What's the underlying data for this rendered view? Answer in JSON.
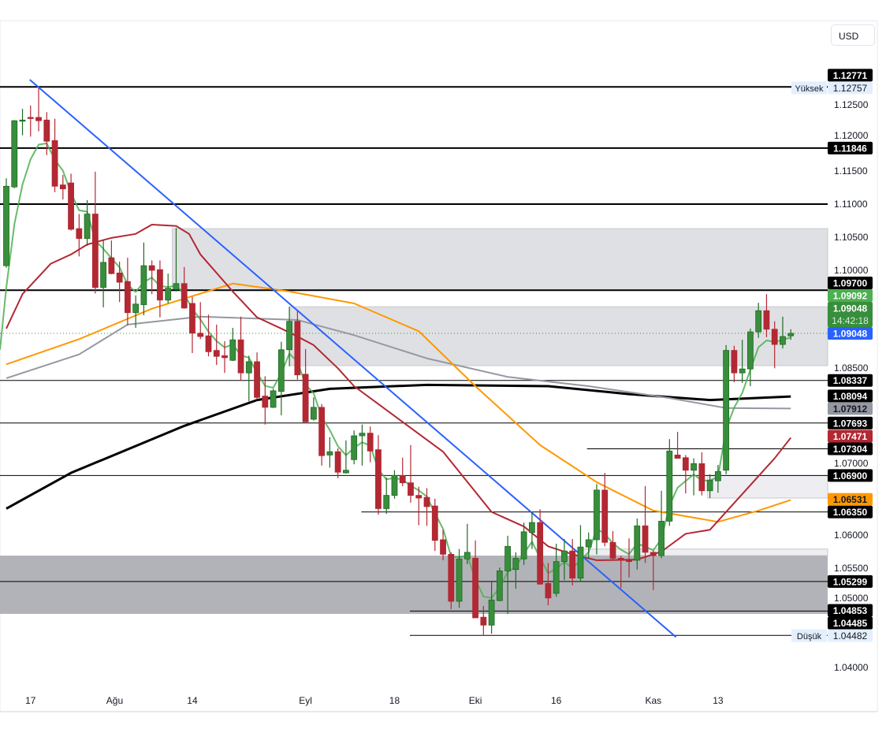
{
  "currency_button": "USD",
  "colors": {
    "up": "#388e3c",
    "down": "#b22833",
    "background": "#ffffff",
    "zone_light": "#dfe0e4",
    "zone_dark": "#b2b3b8",
    "zone_faint": "#eeeef2",
    "trendline": "#2962ff",
    "level": "#000000"
  },
  "chart_data": {
    "type": "candlestick",
    "symbol_currency": "USD",
    "ylim": [
      1.0365,
      1.1325
    ],
    "grid": false,
    "y_ticks": [
      "1.12500",
      "1.12000",
      "1.11500",
      "1.11000",
      "1.10500",
      "1.10000",
      "1.08500",
      "1.07000",
      "1.06000",
      "1.05500",
      "1.05000",
      "1.04000"
    ],
    "x_ticks": [
      {
        "label": "17",
        "index": 4
      },
      {
        "label": "Ağu",
        "index": 14.4
      },
      {
        "label": "14",
        "index": 24
      },
      {
        "label": "Eyl",
        "index": 38
      },
      {
        "label": "18",
        "index": 49
      },
      {
        "label": "Eki",
        "index": 59
      },
      {
        "label": "16",
        "index": 69
      },
      {
        "label": "Kas",
        "index": 81
      },
      {
        "label": "13",
        "index": 89
      }
    ],
    "candles_ohlc": [
      [
        1.1007,
        1.1139,
        1.1004,
        1.1127
      ],
      [
        1.1126,
        1.1227,
        1.1124,
        1.1226
      ],
      [
        1.1226,
        1.1244,
        1.1204,
        1.1227
      ],
      [
        1.1231,
        1.1249,
        1.1202,
        1.123
      ],
      [
        1.1231,
        1.1275,
        1.121,
        1.1226
      ],
      [
        1.1227,
        1.1239,
        1.1174,
        1.1195
      ],
      [
        1.1196,
        1.1229,
        1.1118,
        1.1127
      ],
      [
        1.1129,
        1.1144,
        1.1107,
        1.1123
      ],
      [
        1.1132,
        1.1146,
        1.106,
        1.1062
      ],
      [
        1.1063,
        1.1085,
        1.1021,
        1.1048
      ],
      [
        1.1048,
        1.1106,
        1.1037,
        1.1085
      ],
      [
        1.1085,
        1.1149,
        1.0965,
        1.0974
      ],
      [
        1.0974,
        1.1046,
        1.0944,
        1.1012
      ],
      [
        1.1019,
        1.1045,
        1.0994,
        1.0995
      ],
      [
        1.0996,
        1.1013,
        1.0952,
        1.0982
      ],
      [
        1.0983,
        1.1019,
        1.0917,
        1.0936
      ],
      [
        1.0936,
        1.0962,
        1.0913,
        1.0949
      ],
      [
        1.0948,
        1.1042,
        1.0932,
        1.1007
      ],
      [
        1.1007,
        1.1015,
        1.0964,
        1.1
      ],
      [
        1.1001,
        1.1015,
        1.0929,
        1.0955
      ],
      [
        1.0955,
        1.0995,
        1.095,
        1.0973
      ],
      [
        1.0971,
        1.1064,
        1.0968,
        1.098
      ],
      [
        1.098,
        1.1005,
        1.0942,
        1.0943
      ],
      [
        1.095,
        1.096,
        1.0875,
        1.0905
      ],
      [
        1.0905,
        1.0952,
        1.0896,
        1.09
      ],
      [
        1.0901,
        1.0933,
        1.087,
        1.0877
      ],
      [
        1.0879,
        1.0918,
        1.0857,
        1.087
      ],
      [
        1.0871,
        1.0893,
        1.0845,
        1.0868
      ],
      [
        1.0864,
        1.0913,
        1.0863,
        1.0895
      ],
      [
        1.0895,
        1.093,
        1.0833,
        1.0845
      ],
      [
        1.0845,
        1.0871,
        1.0802,
        1.0862
      ],
      [
        1.0862,
        1.0876,
        1.0805,
        1.0808
      ],
      [
        1.081,
        1.084,
        1.0767,
        1.0793
      ],
      [
        1.0793,
        1.0821,
        1.0792,
        1.0818
      ],
      [
        1.0817,
        1.0892,
        1.0781,
        1.088
      ],
      [
        1.088,
        1.0945,
        1.0855,
        1.0923
      ],
      [
        1.0923,
        1.0939,
        1.0835,
        1.0842
      ],
      [
        1.0843,
        1.0881,
        1.0771,
        1.0771
      ],
      [
        1.0775,
        1.0808,
        1.0773,
        1.0793
      ],
      [
        1.0793,
        1.0798,
        1.0705,
        1.072
      ],
      [
        1.0721,
        1.0748,
        1.0702,
        1.0726
      ],
      [
        1.0726,
        1.0731,
        1.0686,
        1.0695
      ],
      [
        1.0694,
        1.0743,
        1.0693,
        1.0698
      ],
      [
        1.0714,
        1.0758,
        1.0707,
        1.075
      ],
      [
        1.075,
        1.0767,
        1.0705,
        1.0754
      ],
      [
        1.0754,
        1.0764,
        1.071,
        1.0727
      ],
      [
        1.0729,
        1.0751,
        1.0631,
        1.064
      ],
      [
        1.064,
        1.0687,
        1.0632,
        1.066
      ],
      [
        1.066,
        1.0698,
        1.0655,
        1.069
      ],
      [
        1.069,
        1.0717,
        1.0674,
        1.0679
      ],
      [
        1.0679,
        1.0736,
        1.0649,
        1.066
      ],
      [
        1.066,
        1.0673,
        1.0615,
        1.0656
      ],
      [
        1.0657,
        1.0671,
        1.0614,
        1.0643
      ],
      [
        1.0644,
        1.0655,
        1.0576,
        1.0592
      ],
      [
        1.0593,
        1.0608,
        1.0562,
        1.0571
      ],
      [
        1.0571,
        1.0574,
        1.0488,
        1.05
      ],
      [
        1.05,
        1.0579,
        1.049,
        1.0564
      ],
      [
        1.0564,
        1.0617,
        1.0556,
        1.0574
      ],
      [
        1.0565,
        1.0592,
        1.0475,
        1.0475
      ],
      [
        1.0476,
        1.0493,
        1.0448,
        1.0464
      ],
      [
        1.0464,
        1.0531,
        1.0451,
        1.0502
      ],
      [
        1.0501,
        1.0551,
        1.05,
        1.0546
      ],
      [
        1.0546,
        1.0599,
        1.0481,
        1.0583
      ],
      [
        1.0548,
        1.0574,
        1.0519,
        1.0565
      ],
      [
        1.0564,
        1.0619,
        1.0555,
        1.0605
      ],
      [
        1.0604,
        1.0635,
        1.0579,
        1.0619
      ],
      [
        1.0619,
        1.0639,
        1.0525,
        1.0526
      ],
      [
        1.0527,
        1.0558,
        1.0494,
        1.0505
      ],
      [
        1.0512,
        1.0587,
        1.0507,
        1.056
      ],
      [
        1.056,
        1.0594,
        1.0532,
        1.0576
      ],
      [
        1.0576,
        1.0594,
        1.0524,
        1.0535
      ],
      [
        1.0535,
        1.0615,
        1.0529,
        1.0582
      ],
      [
        1.0582,
        1.0604,
        1.0564,
        1.0593
      ],
      [
        1.0593,
        1.0677,
        1.0571,
        1.0668
      ],
      [
        1.0668,
        1.0694,
        1.0583,
        1.0589
      ],
      [
        1.0589,
        1.0606,
        1.0561,
        1.0565
      ],
      [
        1.0565,
        1.0569,
        1.052,
        1.0562
      ],
      [
        1.0562,
        1.0595,
        1.0536,
        1.056
      ],
      [
        1.0562,
        1.0625,
        1.0548,
        1.0614
      ],
      [
        1.0614,
        1.0674,
        1.0558,
        1.0574
      ],
      [
        1.0574,
        1.0577,
        1.0517,
        1.0569
      ],
      [
        1.0569,
        1.0667,
        1.0565,
        1.0621
      ],
      [
        1.0621,
        1.0745,
        1.0614,
        1.0727
      ],
      [
        1.0721,
        1.0756,
        1.0716,
        1.0716
      ],
      [
        1.0717,
        1.0721,
        1.0663,
        1.0698
      ],
      [
        1.0698,
        1.0716,
        1.066,
        1.0708
      ],
      [
        1.0708,
        1.0725,
        1.066,
        1.0667
      ],
      [
        1.0667,
        1.0692,
        1.0656,
        1.0683
      ],
      [
        1.0682,
        1.0706,
        1.0664,
        1.0696
      ],
      [
        1.0698,
        1.0887,
        1.0692,
        1.0879
      ],
      [
        1.0879,
        1.0886,
        1.0831,
        1.0845
      ],
      [
        1.0845,
        1.0895,
        1.083,
        1.0851
      ],
      [
        1.0851,
        1.0912,
        1.0825,
        1.0907
      ],
      [
        1.0907,
        1.0951,
        1.0898,
        1.0939
      ],
      [
        1.0939,
        1.0964,
        1.0899,
        1.0911
      ],
      [
        1.0911,
        1.0923,
        1.0852,
        1.0888
      ],
      [
        1.0888,
        1.093,
        1.0882,
        1.09
      ],
      [
        1.0901,
        1.0911,
        1.0895,
        1.09048
      ]
    ],
    "moving_averages": [
      {
        "color": "#000000",
        "points": [
          [
            1,
            1.064
          ],
          [
            9,
            1.0694
          ],
          [
            23,
            1.0765
          ],
          [
            32,
            1.0804
          ],
          [
            41,
            1.0821
          ],
          [
            53,
            1.0827
          ],
          [
            68,
            1.0825
          ],
          [
            78,
            1.0813
          ],
          [
            88,
            1.0804
          ],
          [
            98,
            1.08094
          ]
        ]
      },
      {
        "color": "#9598a1",
        "points": [
          [
            1,
            1.0837
          ],
          [
            10,
            1.0873
          ],
          [
            16,
            1.0918
          ],
          [
            25,
            1.093
          ],
          [
            37,
            1.0925
          ],
          [
            44,
            1.0902
          ],
          [
            53,
            1.0867
          ],
          [
            63,
            1.0839
          ],
          [
            73,
            1.0825
          ],
          [
            83,
            1.0807
          ],
          [
            90,
            1.0792
          ],
          [
            98,
            1.07912
          ]
        ]
      },
      {
        "color": "#ff9800",
        "points": [
          [
            1,
            1.0858
          ],
          [
            10,
            1.0896
          ],
          [
            19,
            1.0942
          ],
          [
            29,
            1.098
          ],
          [
            36,
            1.0968
          ],
          [
            44,
            1.095
          ],
          [
            52,
            1.0908
          ],
          [
            59,
            1.0825
          ],
          [
            67,
            1.0736
          ],
          [
            74,
            1.068
          ],
          [
            81,
            1.0637
          ],
          [
            89,
            1.062
          ],
          [
            94,
            1.0637
          ],
          [
            98,
            1.06531
          ]
        ]
      },
      {
        "color": "#b22833",
        "points": [
          [
            1,
            1.0912
          ],
          [
            3,
            1.0964
          ],
          [
            6.5,
            1.101
          ],
          [
            9,
            1.1024
          ],
          [
            11,
            1.1039
          ],
          [
            14,
            1.1049
          ],
          [
            17,
            1.1055
          ],
          [
            19,
            1.1069
          ],
          [
            22,
            1.1067
          ],
          [
            23.6,
            1.1055
          ],
          [
            25,
            1.1024
          ],
          [
            29,
            1.0968
          ],
          [
            32,
            1.0929
          ],
          [
            35,
            1.0912
          ],
          [
            37,
            1.09
          ],
          [
            39,
            1.0887
          ],
          [
            42,
            1.0852
          ],
          [
            44,
            1.0825
          ],
          [
            49,
            1.078
          ],
          [
            55,
            1.0726
          ],
          [
            61,
            1.0635
          ],
          [
            65,
            1.0613
          ],
          [
            68,
            1.0583
          ],
          [
            71,
            1.0571
          ],
          [
            74,
            1.0562
          ],
          [
            79,
            1.0563
          ],
          [
            82,
            1.0575
          ],
          [
            85,
            1.0602
          ],
          [
            88,
            1.0608
          ],
          [
            92,
            1.0662
          ],
          [
            96,
            1.0716
          ],
          [
            98,
            1.07471
          ]
        ]
      },
      {
        "color": "#4caf50",
        "source": "close-smoothed"
      }
    ],
    "levels": [
      {
        "price": 1.12771,
        "thick": true,
        "from_index": 0
      },
      {
        "price": 1.11846,
        "thick": true,
        "from_index": 0
      },
      {
        "price": 1.11,
        "thick": true,
        "from_index": 0
      },
      {
        "price": 1.097,
        "thick": true,
        "from_index": 0
      },
      {
        "price": 1.08337,
        "thick": false,
        "from_index": 0
      },
      {
        "price": 1.07693,
        "thick": false,
        "from_index": 0
      },
      {
        "price": 1.07304,
        "thick": false,
        "from_index": 72.8
      },
      {
        "price": 1.069,
        "thick": false,
        "from_index": 0
      },
      {
        "price": 1.0635,
        "thick": false,
        "from_index": 44.9
      },
      {
        "price": 1.05299,
        "thick": false,
        "from_index": 0
      },
      {
        "price": 1.04853,
        "thick": false,
        "from_index": 50.9
      },
      {
        "price": 1.04485,
        "thick": false,
        "from_index": 50.9
      }
    ],
    "zones": [
      {
        "from_index": 22,
        "top": 1.1063,
        "bottom": 1.097,
        "shade": "light"
      },
      {
        "from_index": 36.5,
        "top": 1.0945,
        "bottom": 1.0856,
        "shade": "light"
      },
      {
        "from_index": 88.2,
        "top": 1.069,
        "bottom": 1.0656,
        "shade": "faint"
      },
      {
        "from_index": 72.3,
        "top": 1.0579,
        "bottom": 1.0569,
        "shade": "faint"
      },
      {
        "from_index": 0,
        "top": 1.0569,
        "bottom": 1.0481,
        "shade": "dark"
      }
    ],
    "trendline": {
      "from": [
        3.9,
        1.1288
      ],
      "to": [
        83.8,
        1.0446
      ]
    },
    "current_price": 1.09048,
    "price_labels": [
      {
        "text": "1.12771",
        "price": 1.12771,
        "bg": "#000000",
        "fg": "#ffffff"
      },
      {
        "text": "1.12757",
        "price": 1.12757,
        "bg": "#e3effd",
        "fg": "#131722",
        "tag": "Yüksek"
      },
      {
        "text": "1.11846",
        "price": 1.11846,
        "bg": "#000000",
        "fg": "#ffffff"
      },
      {
        "text": "1.09700",
        "price": 1.097,
        "bg": "#000000",
        "fg": "#ffffff"
      },
      {
        "text": "1.09092",
        "price": 1.09092,
        "bg": "#4caf50",
        "fg": "#ffffff"
      },
      {
        "text": "1.09048",
        "sub": "14:42:18",
        "price": 1.0909,
        "bg": "#388e3c",
        "fg": "#ffffff"
      },
      {
        "text": "1.09048",
        "price": 1.09048,
        "bg": "#2962ff",
        "fg": "#ffffff"
      },
      {
        "text": "1.08337",
        "price": 1.08337,
        "bg": "#000000",
        "fg": "#ffffff"
      },
      {
        "text": "1.08094",
        "price": 1.08094,
        "bg": "#000000",
        "fg": "#ffffff"
      },
      {
        "text": "1.07912",
        "price": 1.07912,
        "bg": "#9598a1",
        "fg": "#131722"
      },
      {
        "text": "1.07693",
        "price": 1.07693,
        "bg": "#000000",
        "fg": "#ffffff"
      },
      {
        "text": "1.07471",
        "price": 1.07471,
        "bg": "#b22833",
        "fg": "#ffffff"
      },
      {
        "text": "1.07304",
        "price": 1.07304,
        "bg": "#000000",
        "fg": "#ffffff"
      },
      {
        "text": "1.06900",
        "price": 1.069,
        "bg": "#000000",
        "fg": "#ffffff"
      },
      {
        "text": "1.06531",
        "price": 1.06531,
        "bg": "#ff9800",
        "fg": "#131722"
      },
      {
        "text": "1.06350",
        "price": 1.0635,
        "bg": "#000000",
        "fg": "#ffffff"
      },
      {
        "text": "1.05299",
        "price": 1.05299,
        "bg": "#000000",
        "fg": "#ffffff"
      },
      {
        "text": "1.04853",
        "price": 1.04853,
        "bg": "#000000",
        "fg": "#ffffff"
      },
      {
        "text": "1.04485",
        "price": 1.04485,
        "bg": "#000000",
        "fg": "#ffffff"
      },
      {
        "text": "1.04482",
        "price": 1.04482,
        "bg": "#e3effd",
        "fg": "#131722",
        "tag": "Düşük"
      }
    ]
  }
}
